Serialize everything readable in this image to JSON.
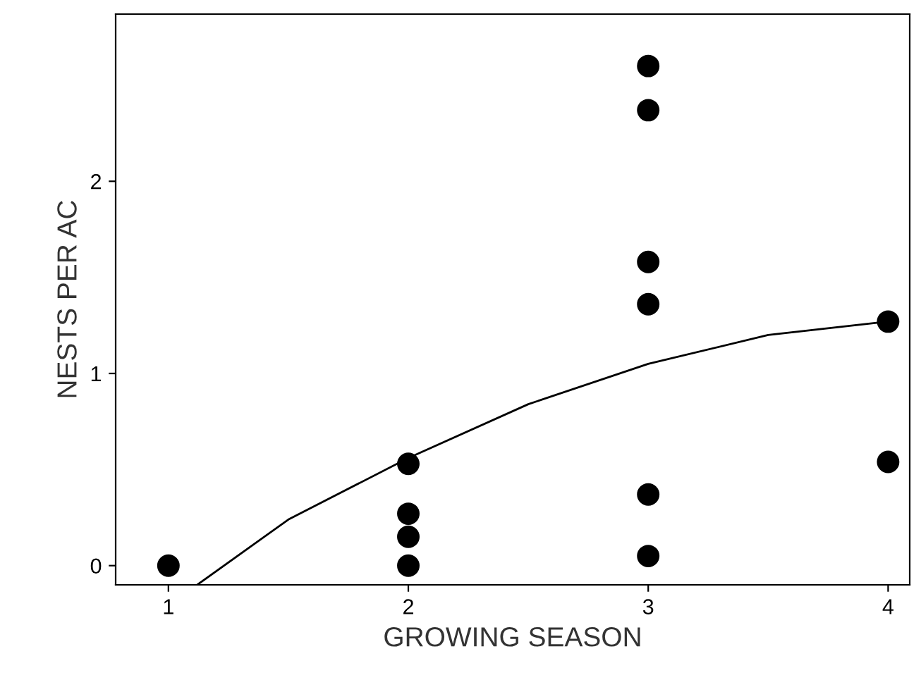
{
  "chart_data": {
    "type": "scatter",
    "xlabel": "GROWING SEASON",
    "ylabel": "NESTS PER AC",
    "xlim": [
      0.78,
      4.09
    ],
    "ylim": [
      -0.1,
      2.87
    ],
    "xticks": [
      1,
      2,
      3,
      4
    ],
    "yticks": [
      0,
      1,
      2
    ],
    "grid": false,
    "legend": false,
    "series": [
      {
        "marker": "circle",
        "color": "#000000",
        "x": [
          1,
          2,
          2,
          2,
          2,
          3,
          3,
          3,
          3,
          3,
          3,
          4,
          4
        ],
        "values": [
          0,
          0.53,
          0.27,
          0.15,
          0,
          2.6,
          2.37,
          1.58,
          1.36,
          0.37,
          0.05,
          1.27,
          0.54
        ]
      },
      {
        "type": "line",
        "marker": "none",
        "color": "#000000",
        "x": [
          1.12,
          1.5,
          2,
          2.5,
          3,
          3.5,
          4
        ],
        "values": [
          -0.1,
          0.24,
          0.56,
          0.84,
          1.05,
          1.2,
          1.27
        ]
      }
    ]
  }
}
